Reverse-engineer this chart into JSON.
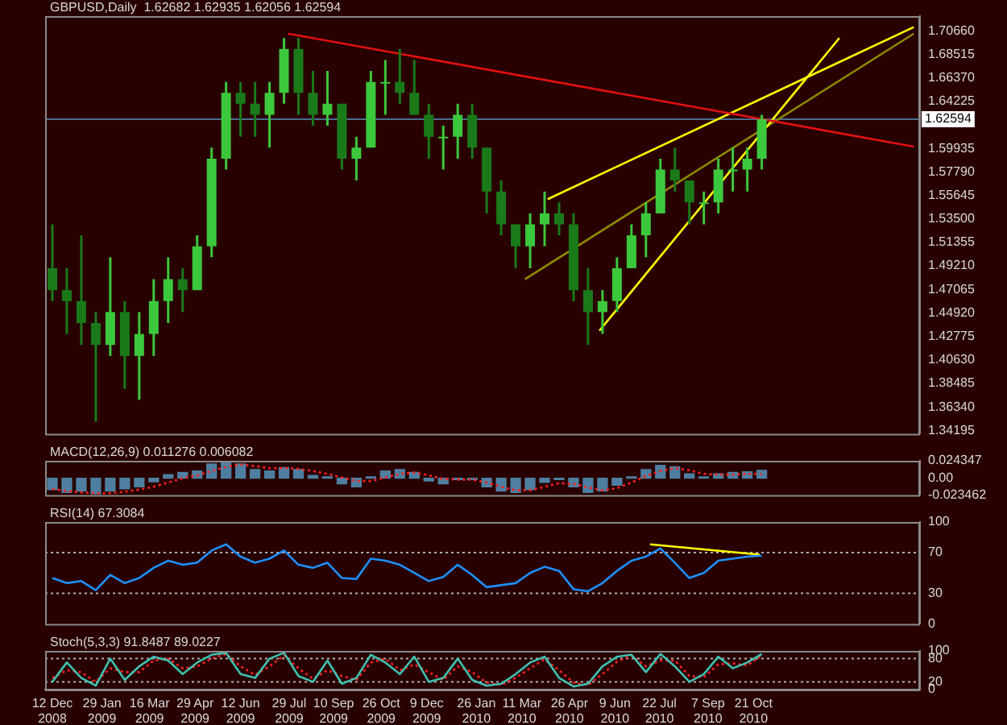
{
  "chart_data": [
    {
      "type": "candlestick",
      "title": "GBPUSD,Daily  1.62682 1.62935 1.62056 1.62594",
      "colors": [
        "#1a7a1a",
        "#1a7a1a",
        "#1a7a1a",
        "#1a7a1a",
        "#3cc83c",
        "#1a7a1a",
        "#3cc83c",
        "#3cc83c",
        "#3cc83c",
        "#1a7a1a",
        "#3cc83c",
        "#3cc83c",
        "#3cc83c",
        "#1a7a1a",
        "#1a7a1a",
        "#3cc83c",
        "#3cc83c",
        "#1a7a1a",
        "#1a7a1a",
        "#3cc83c",
        "#1a7a1a",
        "#3cc83c",
        "#3cc83c",
        "#3cc83c",
        "#1a7a1a",
        "#1a7a1a",
        "#1a7a1a",
        "#3cc83c",
        "#3cc83c",
        "#1a7a1a",
        "#1a7a1a",
        "#1a7a1a",
        "#1a7a1a",
        "#3cc83c",
        "#3cc83c",
        "#1a7a1a",
        "#1a7a1a",
        "#1a7a1a",
        "#3cc83c",
        "#3cc83c",
        "#3cc83c",
        "#3cc83c",
        "#3cc83c",
        "#1a7a1a",
        "#1a7a1a",
        "#3cc83c",
        "#3cc83c",
        "#3cc83c",
        "#3cc83c",
        "#3cc83c"
      ],
      "x": [
        "2008-12-12",
        "2008-12-26",
        "2009-01-09",
        "2009-01-23",
        "2009-02-06",
        "2009-02-20",
        "2009-03-06",
        "2009-03-20",
        "2009-04-03",
        "2009-04-17",
        "2009-05-01",
        "2009-05-15",
        "2009-05-29",
        "2009-06-12",
        "2009-06-26",
        "2009-07-10",
        "2009-07-24",
        "2009-08-07",
        "2009-08-21",
        "2009-09-04",
        "2009-09-18",
        "2009-10-02",
        "2009-10-16",
        "2009-10-30",
        "2009-11-13",
        "2009-11-27",
        "2009-12-11",
        "2009-12-25",
        "2010-01-08",
        "2010-01-22",
        "2010-02-05",
        "2010-02-19",
        "2010-03-05",
        "2010-03-19",
        "2010-04-02",
        "2010-04-16",
        "2010-04-30",
        "2010-05-14",
        "2010-05-28",
        "2010-06-11",
        "2010-06-25",
        "2010-07-09",
        "2010-07-23",
        "2010-08-06",
        "2010-08-20",
        "2010-09-03",
        "2010-09-17",
        "2010-10-01",
        "2010-10-15",
        "2010-10-29"
      ],
      "ohlc": [
        [
          1.49,
          1.53,
          1.46,
          1.47
        ],
        [
          1.47,
          1.49,
          1.43,
          1.46
        ],
        [
          1.46,
          1.52,
          1.42,
          1.44
        ],
        [
          1.44,
          1.45,
          1.35,
          1.42
        ],
        [
          1.42,
          1.5,
          1.41,
          1.45
        ],
        [
          1.45,
          1.46,
          1.38,
          1.41
        ],
        [
          1.41,
          1.45,
          1.37,
          1.43
        ],
        [
          1.43,
          1.48,
          1.41,
          1.46
        ],
        [
          1.46,
          1.5,
          1.44,
          1.48
        ],
        [
          1.48,
          1.49,
          1.45,
          1.47
        ],
        [
          1.47,
          1.52,
          1.47,
          1.51
        ],
        [
          1.51,
          1.6,
          1.5,
          1.59
        ],
        [
          1.59,
          1.66,
          1.58,
          1.65
        ],
        [
          1.65,
          1.66,
          1.61,
          1.64
        ],
        [
          1.64,
          1.66,
          1.61,
          1.63
        ],
        [
          1.63,
          1.66,
          1.6,
          1.65
        ],
        [
          1.65,
          1.7,
          1.64,
          1.69
        ],
        [
          1.69,
          1.7,
          1.63,
          1.65
        ],
        [
          1.65,
          1.67,
          1.62,
          1.63
        ],
        [
          1.63,
          1.67,
          1.62,
          1.64
        ],
        [
          1.64,
          1.64,
          1.58,
          1.59
        ],
        [
          1.59,
          1.61,
          1.57,
          1.6
        ],
        [
          1.6,
          1.67,
          1.6,
          1.66
        ],
        [
          1.66,
          1.68,
          1.63,
          1.66
        ],
        [
          1.66,
          1.69,
          1.64,
          1.65
        ],
        [
          1.65,
          1.68,
          1.63,
          1.63
        ],
        [
          1.63,
          1.64,
          1.59,
          1.61
        ],
        [
          1.61,
          1.62,
          1.58,
          1.61
        ],
        [
          1.61,
          1.64,
          1.59,
          1.63
        ],
        [
          1.63,
          1.64,
          1.59,
          1.6
        ],
        [
          1.6,
          1.6,
          1.54,
          1.56
        ],
        [
          1.56,
          1.57,
          1.52,
          1.53
        ],
        [
          1.53,
          1.53,
          1.49,
          1.51
        ],
        [
          1.51,
          1.54,
          1.49,
          1.53
        ],
        [
          1.53,
          1.56,
          1.51,
          1.54
        ],
        [
          1.54,
          1.55,
          1.52,
          1.53
        ],
        [
          1.53,
          1.54,
          1.46,
          1.47
        ],
        [
          1.47,
          1.49,
          1.42,
          1.45
        ],
        [
          1.45,
          1.47,
          1.43,
          1.46
        ],
        [
          1.46,
          1.5,
          1.45,
          1.49
        ],
        [
          1.49,
          1.53,
          1.49,
          1.52
        ],
        [
          1.52,
          1.55,
          1.5,
          1.54
        ],
        [
          1.54,
          1.59,
          1.54,
          1.58
        ],
        [
          1.58,
          1.6,
          1.56,
          1.57
        ],
        [
          1.57,
          1.57,
          1.53,
          1.55
        ],
        [
          1.55,
          1.56,
          1.53,
          1.55
        ],
        [
          1.55,
          1.59,
          1.54,
          1.58
        ],
        [
          1.58,
          1.6,
          1.56,
          1.58
        ],
        [
          1.58,
          1.6,
          1.56,
          1.59
        ],
        [
          1.59,
          1.63,
          1.58,
          1.626
        ]
      ],
      "series": [
        {
          "type": "line",
          "color": "#e01010",
          "x": [
            "2009-07-28",
            "2011-03-25"
          ],
          "values": [
            1.704,
            1.601
          ]
        },
        {
          "type": "line",
          "color": "#ffff00",
          "x": [
            "2010-04-05",
            "2011-03-25"
          ],
          "values": [
            1.553,
            1.71
          ]
        },
        {
          "type": "line",
          "color": "#ffff00",
          "x": [
            "2010-05-25",
            "2011-01-12"
          ],
          "values": [
            1.433,
            1.7
          ]
        },
        {
          "type": "line",
          "color": "#8a8a00",
          "x": [
            "2010-03-14",
            "2011-03-25"
          ],
          "values": [
            1.48,
            1.704
          ]
        }
      ],
      "xlim": [
        "2008-12-05",
        "2011-03-31"
      ],
      "ylim": [
        1.339,
        1.72
      ],
      "yticks": [
        {
          "value": 1.34195,
          "label": "1.34195"
        },
        {
          "value": 1.3634,
          "label": "1.36340"
        },
        {
          "value": 1.38485,
          "label": "1.38485"
        },
        {
          "value": 1.4063,
          "label": "1.40630"
        },
        {
          "value": 1.42775,
          "label": "1.42775"
        },
        {
          "value": 1.4492,
          "label": "1.44920"
        },
        {
          "value": 1.47065,
          "label": "1.47065"
        },
        {
          "value": 1.4921,
          "label": "1.49210"
        },
        {
          "value": 1.51355,
          "label": "1.51355"
        },
        {
          "value": 1.535,
          "label": "1.53500"
        },
        {
          "value": 1.55645,
          "label": "1.55645"
        },
        {
          "value": 1.5779,
          "label": "1.57790"
        },
        {
          "value": 1.59935,
          "label": "1.59935"
        },
        {
          "value": 1.64225,
          "label": "1.64225"
        },
        {
          "value": 1.6637,
          "label": "1.66370"
        },
        {
          "value": 1.68515,
          "label": "1.68515"
        },
        {
          "value": 1.7066,
          "label": "1.70660"
        }
      ],
      "ref_lines": [
        {
          "axis": "y",
          "value": 1.62594,
          "label": "1.62594",
          "color": "#4a6e90"
        }
      ],
      "tick_labels": "y"
    },
    {
      "type": "bar",
      "title": "MACD(12,26,9) 0.011276 0.006082",
      "x": [
        "2008-12-12",
        "2008-12-26",
        "2009-01-09",
        "2009-01-23",
        "2009-02-06",
        "2009-02-20",
        "2009-03-06",
        "2009-03-20",
        "2009-04-03",
        "2009-04-17",
        "2009-05-01",
        "2009-05-15",
        "2009-05-29",
        "2009-06-12",
        "2009-06-26",
        "2009-07-10",
        "2009-07-24",
        "2009-08-07",
        "2009-08-21",
        "2009-09-04",
        "2009-09-18",
        "2009-10-02",
        "2009-10-16",
        "2009-10-30",
        "2009-11-13",
        "2009-11-27",
        "2009-12-11",
        "2009-12-25",
        "2010-01-08",
        "2010-01-22",
        "2010-02-05",
        "2010-02-19",
        "2010-03-05",
        "2010-03-19",
        "2010-04-02",
        "2010-04-16",
        "2010-04-30",
        "2010-05-14",
        "2010-05-28",
        "2010-06-11",
        "2010-06-25",
        "2010-07-09",
        "2010-07-23",
        "2010-08-06",
        "2010-08-20",
        "2010-09-03",
        "2010-09-17",
        "2010-10-01",
        "2010-10-15",
        "2010-10-29"
      ],
      "series": [
        {
          "type": "bar",
          "color": "#4f7fa0",
          "values": [
            -0.016,
            -0.02,
            -0.018,
            -0.022,
            -0.018,
            -0.015,
            -0.012,
            -0.005,
            0.005,
            0.008,
            0.01,
            0.02,
            0.023,
            0.02,
            0.012,
            0.01,
            0.015,
            0.012,
            0.004,
            0.002,
            -0.008,
            -0.012,
            0.002,
            0.01,
            0.012,
            0.008,
            -0.004,
            -0.008,
            -0.002,
            -0.002,
            -0.012,
            -0.018,
            -0.02,
            -0.016,
            -0.006,
            -0.002,
            -0.012,
            -0.02,
            -0.018,
            -0.01,
            0.002,
            0.012,
            0.018,
            0.016,
            0.006,
            0.002,
            0.006,
            0.008,
            0.009,
            0.011
          ]
        },
        {
          "type": "line",
          "color": "#ff2020",
          "line_style": "dotted",
          "values": [
            -0.015,
            -0.018,
            -0.02,
            -0.021,
            -0.021,
            -0.019,
            -0.016,
            -0.012,
            -0.006,
            0,
            0.004,
            0.01,
            0.016,
            0.019,
            0.017,
            0.014,
            0.014,
            0.013,
            0.01,
            0.006,
            0.001,
            -0.004,
            -0.004,
            0.001,
            0.006,
            0.008,
            0.004,
            -0.001,
            -0.002,
            -0.002,
            -0.006,
            -0.012,
            -0.017,
            -0.017,
            -0.012,
            -0.007,
            -0.008,
            -0.013,
            -0.017,
            -0.014,
            -0.006,
            0.003,
            0.01,
            0.014,
            0.011,
            0.006,
            0.005,
            0.005,
            0.006,
            0.006
          ]
        }
      ],
      "xlim": [
        "2008-12-05",
        "2011-03-31"
      ],
      "ylim": [
        -0.023462,
        0.024347
      ],
      "yticks": [
        {
          "value": -0.023462,
          "label": "-0.023462"
        },
        {
          "value": 0,
          "label": "0.00"
        },
        0.024347
      ],
      "tick_labels": "y"
    },
    {
      "type": "line",
      "title": "RSI(14) 67.3084",
      "x": [
        "2008-12-12",
        "2008-12-26",
        "2009-01-09",
        "2009-01-23",
        "2009-02-06",
        "2009-02-20",
        "2009-03-06",
        "2009-03-20",
        "2009-04-03",
        "2009-04-17",
        "2009-05-01",
        "2009-05-15",
        "2009-05-29",
        "2009-06-12",
        "2009-06-26",
        "2009-07-10",
        "2009-07-24",
        "2009-08-07",
        "2009-08-21",
        "2009-09-04",
        "2009-09-18",
        "2009-10-02",
        "2009-10-16",
        "2009-10-30",
        "2009-11-13",
        "2009-11-27",
        "2009-12-11",
        "2009-12-25",
        "2010-01-08",
        "2010-01-22",
        "2010-02-05",
        "2010-02-19",
        "2010-03-05",
        "2010-03-19",
        "2010-04-02",
        "2010-04-16",
        "2010-04-30",
        "2010-05-14",
        "2010-05-28",
        "2010-06-11",
        "2010-06-25",
        "2010-07-09",
        "2010-07-23",
        "2010-08-06",
        "2010-08-20",
        "2010-09-03",
        "2010-09-17",
        "2010-10-01",
        "2010-10-15",
        "2010-10-29"
      ],
      "series": [
        {
          "color": "#1e90ff",
          "values": [
            45,
            40,
            42,
            33,
            48,
            40,
            45,
            55,
            62,
            58,
            60,
            72,
            78,
            66,
            60,
            64,
            72,
            58,
            55,
            60,
            45,
            44,
            64,
            62,
            58,
            50,
            42,
            46,
            58,
            48,
            36,
            38,
            40,
            50,
            56,
            52,
            34,
            32,
            40,
            52,
            62,
            66,
            74,
            60,
            45,
            50,
            62,
            64,
            66,
            67
          ]
        },
        {
          "color": "#ffff00",
          "x": [
            "2010-07-13",
            "2010-10-27"
          ],
          "values": [
            78,
            68
          ]
        }
      ],
      "xlim": [
        "2008-12-05",
        "2011-03-31"
      ],
      "ylim": [
        0,
        100
      ],
      "yticks": [
        0,
        30,
        70,
        100
      ],
      "ref_lines": [
        {
          "axis": "y",
          "value": 30,
          "color": "#b0b0b0",
          "line_style": "dotted"
        },
        {
          "axis": "y",
          "value": 70,
          "color": "#b0b0b0",
          "line_style": "dotted"
        }
      ],
      "tick_labels": "y"
    },
    {
      "type": "line",
      "title": "Stoch(5,3,3) 91.8487 89.0227",
      "x": [
        "2008-12-12",
        "2008-12-26",
        "2009-01-09",
        "2009-01-23",
        "2009-02-06",
        "2009-02-20",
        "2009-03-06",
        "2009-03-20",
        "2009-04-03",
        "2009-04-17",
        "2009-05-01",
        "2009-05-15",
        "2009-05-29",
        "2009-06-12",
        "2009-06-26",
        "2009-07-10",
        "2009-07-24",
        "2009-08-07",
        "2009-08-21",
        "2009-09-04",
        "2009-09-18",
        "2009-10-02",
        "2009-10-16",
        "2009-10-30",
        "2009-11-13",
        "2009-11-27",
        "2009-12-11",
        "2009-12-25",
        "2010-01-08",
        "2010-01-22",
        "2010-02-05",
        "2010-02-19",
        "2010-03-05",
        "2010-03-19",
        "2010-04-02",
        "2010-04-16",
        "2010-04-30",
        "2010-05-14",
        "2010-05-28",
        "2010-06-11",
        "2010-06-25",
        "2010-07-09",
        "2010-07-23",
        "2010-08-06",
        "2010-08-20",
        "2010-09-03",
        "2010-09-17",
        "2010-10-01",
        "2010-10-15",
        "2010-10-29"
      ],
      "series": [
        {
          "color": "#40c0b0",
          "values": [
            20,
            70,
            30,
            10,
            80,
            25,
            60,
            85,
            75,
            40,
            70,
            90,
            95,
            40,
            30,
            80,
            95,
            35,
            20,
            75,
            15,
            30,
            90,
            70,
            40,
            85,
            20,
            30,
            80,
            25,
            10,
            15,
            40,
            70,
            85,
            30,
            8,
            15,
            60,
            85,
            90,
            45,
            92,
            60,
            20,
            40,
            85,
            55,
            70,
            92
          ]
        },
        {
          "color": "#ff2020",
          "line_style": "dotted",
          "values": [
            30,
            50,
            45,
            20,
            55,
            45,
            45,
            75,
            80,
            55,
            60,
            80,
            92,
            60,
            38,
            60,
            88,
            55,
            28,
            50,
            35,
            25,
            70,
            80,
            50,
            65,
            45,
            25,
            60,
            45,
            18,
            12,
            30,
            55,
            78,
            50,
            18,
            12,
            40,
            72,
            88,
            60,
            75,
            75,
            35,
            32,
            65,
            68,
            62,
            89
          ]
        }
      ],
      "xlim": [
        "2008-12-05",
        "2011-03-31"
      ],
      "ylim": [
        0,
        100
      ],
      "yticks": [
        0,
        20,
        80,
        100
      ],
      "xticks": [
        {
          "value": "2008-12-12",
          "label": "12 Dec 2008"
        },
        {
          "value": "2009-01-29",
          "label": "29 Jan 2009"
        },
        {
          "value": "2009-03-16",
          "label": "16 Mar 2009"
        },
        {
          "value": "2009-04-29",
          "label": "29 Apr 2009"
        },
        {
          "value": "2009-06-12",
          "label": "12 Jun 2009"
        },
        {
          "value": "2009-07-29",
          "label": "29 Jul 2009"
        },
        {
          "value": "2009-09-10",
          "label": "10 Sep 2009"
        },
        {
          "value": "2009-10-26",
          "label": "26 Oct 2009"
        },
        {
          "value": "2009-12-09",
          "label": "9 Dec 2009"
        },
        {
          "value": "2010-01-26",
          "label": "26 Jan 2010"
        },
        {
          "value": "2010-03-11",
          "label": "11 Mar 2010"
        },
        {
          "value": "2010-04-26",
          "label": "26 Apr 2010"
        },
        {
          "value": "2010-06-09",
          "label": "9 Jun 2010"
        },
        {
          "value": "2010-07-22",
          "label": "22 Jul 2010"
        },
        {
          "value": "2010-09-07",
          "label": "7 Sep 2010"
        },
        {
          "value": "2010-10-21",
          "label": "21 Oct 2010"
        }
      ],
      "ref_lines": [
        {
          "axis": "y",
          "value": 20,
          "color": "#b0b0b0",
          "line_style": "dotted"
        },
        {
          "axis": "y",
          "value": 80,
          "color": "#b0b0b0",
          "line_style": "dotted"
        }
      ]
    }
  ]
}
